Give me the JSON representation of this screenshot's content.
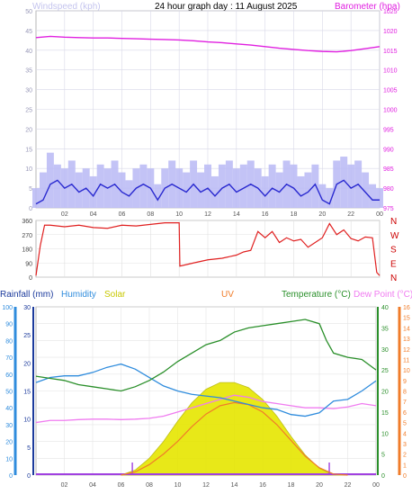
{
  "header": {
    "wind_label": "Windspeed (kph)",
    "title": "24 hour graph day : 11 August 2025",
    "baro_label": "Barometer (hpa)"
  },
  "labels2": {
    "rain": "Rainfall (mm)",
    "hum": "Humidity",
    "solar": "Solar",
    "uv": "UV",
    "temp": "Temperature (°C)",
    "dew": "Dew Point (°C)"
  },
  "colors": {
    "wind": "#2a2ad0",
    "gust": "#b8b8f4",
    "baro": "#e020e0",
    "dir": "#e02020",
    "humidity": "#2f8cdd",
    "temp": "#2a8f2a",
    "dew": "#f07cf0",
    "solar": "#e6e600",
    "uv": "#f07c2a",
    "compass": "#cc0000",
    "rain_axis": "#2f8cdd",
    "temp_axis": "#2a8f2a",
    "uv_axis": "#f07c2a"
  },
  "chart_data": [
    {
      "type": "line",
      "title": "24 hour graph day : 11 August 2025",
      "x_ticks": [
        "02",
        "04",
        "06",
        "08",
        "10",
        "12",
        "14",
        "16",
        "18",
        "20",
        "22",
        "00"
      ],
      "ylabel_left": "Windspeed (kph)",
      "ylim_left": [
        0,
        50
      ],
      "yticks_left": [
        "0",
        "5",
        "10",
        "15",
        "20",
        "25",
        "30",
        "35",
        "40",
        "45",
        "50"
      ],
      "ylabel_right": "Barometer (hpa)",
      "ylim_right": [
        975,
        1025
      ],
      "yticks_right": [
        "975",
        "980",
        "985",
        "990",
        "995",
        "1000",
        "1005",
        "1010",
        "1015",
        "1020",
        "1025"
      ],
      "series": [
        {
          "name": "Windspeed (kph)",
          "axis": "left",
          "x": [
            0,
            0.5,
            1,
            1.5,
            2,
            2.5,
            3,
            3.5,
            4,
            4.5,
            5,
            5.5,
            6,
            6.5,
            7,
            7.5,
            8,
            8.5,
            9,
            9.5,
            10,
            10.5,
            11,
            11.5,
            12,
            12.5,
            13,
            13.5,
            14,
            14.5,
            15,
            15.5,
            16,
            16.5,
            17,
            17.5,
            18,
            18.5,
            19,
            19.5,
            20,
            20.5,
            21,
            21.5,
            22,
            22.5,
            23,
            23.5,
            24
          ],
          "values": [
            1,
            2,
            6,
            7,
            5,
            6,
            4,
            5,
            3,
            6,
            5,
            6,
            4,
            3,
            5,
            6,
            5,
            2,
            5,
            6,
            5,
            4,
            6,
            4,
            5,
            3,
            5,
            6,
            4,
            5,
            6,
            5,
            3,
            5,
            4,
            6,
            5,
            3,
            4,
            6,
            2,
            1,
            6,
            7,
            5,
            6,
            4,
            2,
            2
          ]
        },
        {
          "name": "Gust",
          "axis": "left",
          "x": [
            0,
            0.5,
            1,
            1.5,
            2,
            2.5,
            3,
            3.5,
            4,
            4.5,
            5,
            5.5,
            6,
            6.5,
            7,
            7.5,
            8,
            8.5,
            9,
            9.5,
            10,
            10.5,
            11,
            11.5,
            12,
            12.5,
            13,
            13.5,
            14,
            14.5,
            15,
            15.5,
            16,
            16.5,
            17,
            17.5,
            18,
            18.5,
            19,
            19.5,
            20,
            20.5,
            21,
            21.5,
            22,
            22.5,
            23,
            23.5,
            24
          ],
          "values": [
            5,
            9,
            14,
            11,
            10,
            12,
            9,
            10,
            8,
            11,
            10,
            12,
            9,
            7,
            10,
            11,
            10,
            6,
            10,
            12,
            10,
            9,
            12,
            9,
            11,
            8,
            11,
            12,
            10,
            11,
            12,
            10,
            8,
            11,
            9,
            12,
            11,
            8,
            9,
            11,
            6,
            5,
            12,
            13,
            11,
            12,
            9,
            6,
            5
          ]
        },
        {
          "name": "Barometer (hpa)",
          "axis": "right",
          "x": [
            0,
            1,
            2,
            3,
            4,
            5,
            6,
            7,
            8,
            9,
            10,
            11,
            12,
            13,
            14,
            15,
            16,
            17,
            18,
            19,
            20,
            21,
            22,
            23,
            24
          ],
          "values": [
            1018.2,
            1018.5,
            1018.3,
            1018.2,
            1018.1,
            1018.1,
            1018.0,
            1017.9,
            1017.8,
            1017.7,
            1017.6,
            1017.4,
            1017.1,
            1016.9,
            1016.6,
            1016.3,
            1015.9,
            1015.5,
            1015.2,
            1014.9,
            1014.7,
            1014.6,
            1014.9,
            1015.4,
            1015.9
          ]
        }
      ]
    },
    {
      "type": "line",
      "x_ticks": [
        "02",
        "04",
        "06",
        "08",
        "10",
        "12",
        "14",
        "16",
        "18",
        "20",
        "22",
        "00"
      ],
      "ylim": [
        0,
        360
      ],
      "yticks": [
        "0",
        "90",
        "180",
        "270",
        "360"
      ],
      "right_labels": [
        "N",
        "W",
        "S",
        "E",
        "N"
      ],
      "series": [
        {
          "name": "Wind direction",
          "x": [
            0,
            0.3,
            0.6,
            1,
            2,
            3,
            4,
            5,
            6,
            7,
            8,
            9,
            10,
            10.05,
            11,
            12,
            13,
            14,
            14.5,
            15,
            15.5,
            16,
            16.5,
            17,
            17.5,
            18,
            18.5,
            19,
            19.5,
            20,
            20.5,
            21,
            21.5,
            22,
            22.5,
            23,
            23.5,
            23.8,
            24
          ],
          "values": [
            10,
            200,
            330,
            330,
            320,
            330,
            315,
            310,
            330,
            325,
            335,
            345,
            345,
            70,
            90,
            110,
            120,
            140,
            160,
            170,
            290,
            250,
            290,
            220,
            250,
            230,
            240,
            190,
            220,
            250,
            340,
            270,
            300,
            245,
            230,
            255,
            250,
            30,
            10
          ]
        }
      ]
    },
    {
      "type": "area",
      "x_ticks": [
        "02",
        "04",
        "06",
        "08",
        "10",
        "12",
        "14",
        "16",
        "18",
        "20",
        "22",
        "00"
      ],
      "ylim_rain": [
        0,
        30
      ],
      "yticks_rain": [
        "0",
        "5",
        "10",
        "15",
        "20",
        "25",
        "30"
      ],
      "ylim_humidity": [
        0,
        100
      ],
      "yticks_humidity": [
        "0",
        "10",
        "20",
        "30",
        "40",
        "50",
        "60",
        "70",
        "80",
        "90",
        "100"
      ],
      "ylim_temp": [
        0,
        40
      ],
      "yticks_temp": [
        "0",
        "5",
        "10",
        "15",
        "20",
        "25",
        "30",
        "35",
        "40"
      ],
      "ylim_uv": [
        0,
        16
      ],
      "yticks_uv": [
        "0",
        "1",
        "2",
        "3",
        "4",
        "5",
        "6",
        "7",
        "8",
        "9",
        "10",
        "11",
        "12",
        "13",
        "14",
        "15",
        "16"
      ],
      "series": [
        {
          "name": "Humidity",
          "axis": "humidity",
          "x": [
            0,
            1,
            2,
            3,
            4,
            5,
            6,
            7,
            8,
            9,
            10,
            11,
            12,
            13,
            14,
            15,
            16,
            17,
            18,
            19,
            20,
            21,
            22,
            23,
            24
          ],
          "values": [
            55,
            58,
            59,
            59,
            61,
            64,
            66,
            63,
            58,
            53,
            50,
            48,
            47,
            46,
            44,
            42,
            40,
            39,
            36,
            35,
            37,
            44,
            45,
            50,
            56
          ]
        },
        {
          "name": "Temperature (°C)",
          "axis": "temp",
          "x": [
            0,
            1,
            2,
            3,
            4,
            5,
            6,
            7,
            8,
            9,
            10,
            11,
            12,
            13,
            14,
            15,
            16,
            17,
            18,
            19,
            20,
            20.5,
            21,
            22,
            23,
            24
          ],
          "values": [
            23.5,
            23,
            22.5,
            21.5,
            21,
            20.5,
            20,
            21,
            22.5,
            24.5,
            27,
            29,
            31,
            32,
            34,
            35,
            35.5,
            36,
            36.5,
            37,
            36,
            32,
            29,
            28,
            27.5,
            25
          ]
        },
        {
          "name": "Dew Point (°C)",
          "axis": "temp",
          "x": [
            0,
            1,
            2,
            3,
            4,
            5,
            6,
            7,
            8,
            9,
            10,
            11,
            12,
            13,
            14,
            15,
            16,
            17,
            18,
            19,
            20,
            21,
            22,
            23,
            24
          ],
          "values": [
            12.5,
            13,
            13,
            13.2,
            13.3,
            13.3,
            13.2,
            13.3,
            13.5,
            14,
            15,
            16,
            17,
            18,
            19,
            18.5,
            17.5,
            17,
            16.5,
            16,
            16,
            15.8,
            16.2,
            17,
            16.5
          ]
        },
        {
          "name": "Solar",
          "axis": "humidity",
          "x": [
            6,
            7,
            8,
            9,
            10,
            11,
            12,
            13,
            14,
            15,
            16,
            17,
            18,
            19,
            20,
            21,
            22
          ],
          "values": [
            0,
            3,
            10,
            20,
            32,
            43,
            51,
            55,
            55,
            52,
            45,
            35,
            23,
            12,
            4,
            0,
            0
          ]
        },
        {
          "name": "UV",
          "axis": "uv",
          "x": [
            6,
            7,
            8,
            9,
            10,
            11,
            12,
            13,
            14,
            15,
            16,
            17,
            18,
            19,
            20,
            21,
            22
          ],
          "values": [
            0,
            0.3,
            1,
            2,
            3.2,
            4.6,
            5.8,
            6.6,
            6.9,
            6.7,
            6,
            4.8,
            3.3,
            1.8,
            0.7,
            0.1,
            0
          ]
        }
      ],
      "rain_markers_x": [
        6.8,
        20.7
      ]
    }
  ]
}
